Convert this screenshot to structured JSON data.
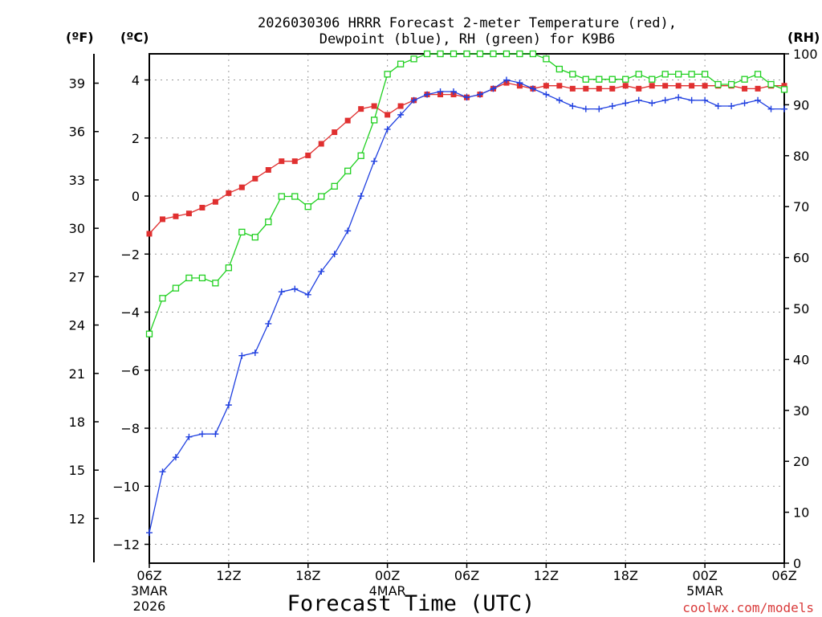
{
  "chart_data": {
    "type": "line",
    "title_line1": "2026030306 HRRR Forecast 2-meter Temperature (red),",
    "title_line2": "Dewpoint (blue), RH (green) for K9B6",
    "xlabel": "Forecast Time (UTC)",
    "credit": "coolwx.com/models",
    "left_unit_f": "(ºF)",
    "left_unit_c": "(ºC)",
    "right_unit": "(RH)",
    "x_range_hours": [
      0,
      48
    ],
    "x_ticks": [
      {
        "h": 0,
        "label": "06Z",
        "sub1": "3MAR",
        "sub2": "2026"
      },
      {
        "h": 6,
        "label": "12Z",
        "sub1": "",
        "sub2": ""
      },
      {
        "h": 12,
        "label": "18Z",
        "sub1": "",
        "sub2": ""
      },
      {
        "h": 18,
        "label": "00Z",
        "sub1": "4MAR",
        "sub2": ""
      },
      {
        "h": 24,
        "label": "06Z",
        "sub1": "",
        "sub2": ""
      },
      {
        "h": 30,
        "label": "12Z",
        "sub1": "",
        "sub2": ""
      },
      {
        "h": 36,
        "label": "18Z",
        "sub1": "",
        "sub2": ""
      },
      {
        "h": 42,
        "label": "00Z",
        "sub1": "5MAR",
        "sub2": ""
      },
      {
        "h": 48,
        "label": "06Z",
        "sub1": "",
        "sub2": ""
      }
    ],
    "yc_range": [
      -12.65,
      4.9
    ],
    "yc_ticks": [
      4,
      2,
      0,
      -2,
      -4,
      -6,
      -8,
      -10,
      -12
    ],
    "yc_tick_labels": [
      "4",
      "2",
      "0",
      "−2",
      "−4",
      "−6",
      "−8",
      "−10",
      "−12"
    ],
    "yf_ticks": [
      39,
      36,
      33,
      30,
      27,
      24,
      21,
      18,
      15,
      12
    ],
    "rh_range": [
      0,
      100
    ],
    "rh_ticks": [
      0,
      10,
      20,
      30,
      40,
      50,
      60,
      70,
      80,
      90,
      100
    ],
    "series": [
      {
        "name": "Temperature",
        "unit": "C",
        "color": "#e03030",
        "marker": "filled-square",
        "hours": [
          0,
          1,
          2,
          3,
          4,
          5,
          6,
          7,
          8,
          9,
          10,
          11,
          12,
          13,
          14,
          15,
          16,
          17,
          18,
          19,
          20,
          21,
          22,
          23,
          24,
          25,
          26,
          27,
          28,
          29,
          30,
          31,
          32,
          33,
          34,
          35,
          36,
          37,
          38,
          39,
          40,
          41,
          42,
          43,
          44,
          45,
          46,
          47,
          48
        ],
        "values": [
          -1.3,
          -0.8,
          -0.7,
          -0.6,
          -0.4,
          -0.2,
          0.1,
          0.3,
          0.6,
          0.9,
          1.2,
          1.2,
          1.4,
          1.8,
          2.2,
          2.6,
          3.0,
          3.1,
          2.8,
          3.1,
          3.3,
          3.5,
          3.5,
          3.5,
          3.4,
          3.5,
          3.7,
          3.9,
          3.8,
          3.7,
          3.8,
          3.8,
          3.7,
          3.7,
          3.7,
          3.7,
          3.8,
          3.7,
          3.8,
          3.8,
          3.8,
          3.8,
          3.8,
          3.8,
          3.8,
          3.7,
          3.7,
          3.8,
          3.8
        ]
      },
      {
        "name": "Dewpoint",
        "unit": "C",
        "color": "#2040e0",
        "marker": "plus",
        "hours": [
          0,
          1,
          2,
          3,
          4,
          5,
          6,
          7,
          8,
          9,
          10,
          11,
          12,
          13,
          14,
          15,
          16,
          17,
          18,
          19,
          20,
          21,
          22,
          23,
          24,
          25,
          26,
          27,
          28,
          29,
          30,
          31,
          32,
          33,
          34,
          35,
          36,
          37,
          38,
          39,
          40,
          41,
          42,
          43,
          44,
          45,
          46,
          47,
          48
        ],
        "values": [
          -11.6,
          -9.5,
          -9.0,
          -8.3,
          -8.2,
          -8.2,
          -7.2,
          -5.5,
          -5.4,
          -4.4,
          -3.3,
          -3.2,
          -3.4,
          -2.6,
          -2.0,
          -1.2,
          0.0,
          1.2,
          2.3,
          2.8,
          3.3,
          3.5,
          3.6,
          3.6,
          3.4,
          3.5,
          3.7,
          4.0,
          3.9,
          3.7,
          3.5,
          3.3,
          3.1,
          3.0,
          3.0,
          3.1,
          3.2,
          3.3,
          3.2,
          3.3,
          3.4,
          3.3,
          3.3,
          3.1,
          3.1,
          3.2,
          3.3,
          3.0,
          3.0
        ]
      },
      {
        "name": "RH",
        "unit": "%",
        "color": "#20d020",
        "marker": "open-square",
        "hours": [
          0,
          1,
          2,
          3,
          4,
          5,
          6,
          7,
          8,
          9,
          10,
          11,
          12,
          13,
          14,
          15,
          16,
          17,
          18,
          19,
          20,
          21,
          22,
          23,
          24,
          25,
          26,
          27,
          28,
          29,
          30,
          31,
          32,
          33,
          34,
          35,
          36,
          37,
          38,
          39,
          40,
          41,
          42,
          43,
          44,
          45,
          46,
          47,
          48
        ],
        "values": [
          45,
          52,
          54,
          56,
          56,
          55,
          58,
          65,
          64,
          67,
          72,
          72,
          70,
          72,
          74,
          77,
          80,
          87,
          96,
          98,
          99,
          100,
          100,
          100,
          100,
          100,
          100,
          100,
          100,
          100,
          99,
          97,
          96,
          95,
          95,
          95,
          95,
          96,
          95,
          96,
          96,
          96,
          96,
          94,
          94,
          95,
          96,
          94,
          93
        ]
      }
    ]
  }
}
